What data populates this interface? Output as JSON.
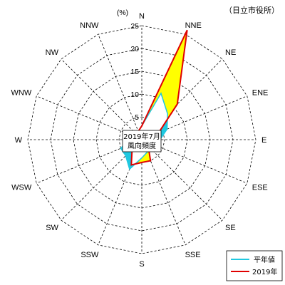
{
  "station_label": "（日立市役所）",
  "center_label": [
    "2019年7月",
    "風向頻度"
  ],
  "chart_data": {
    "type": "radar",
    "unit": "(%)",
    "rmax": 25,
    "ticks": [
      0,
      5,
      10,
      15,
      20,
      25
    ],
    "directions": [
      "N",
      "NNE",
      "NE",
      "ENE",
      "E",
      "ESE",
      "SE",
      "SSE",
      "S",
      "SSW",
      "SW",
      "WSW",
      "W",
      "WNW",
      "NW",
      "NNW"
    ],
    "series": [
      {
        "name": "平年値",
        "color": "#20c8e0",
        "values": [
          3,
          11,
          8,
          6,
          4,
          4,
          3,
          3,
          4,
          7,
          5,
          5,
          3,
          1.5,
          1.5,
          2
        ]
      },
      {
        "name": "2019年",
        "color": "#e00000",
        "values": [
          3,
          26,
          11,
          4,
          3,
          2,
          2,
          5,
          5,
          6,
          3,
          3,
          2,
          1,
          1.5,
          2
        ]
      }
    ],
    "fill_between_color": "#ffff00"
  }
}
